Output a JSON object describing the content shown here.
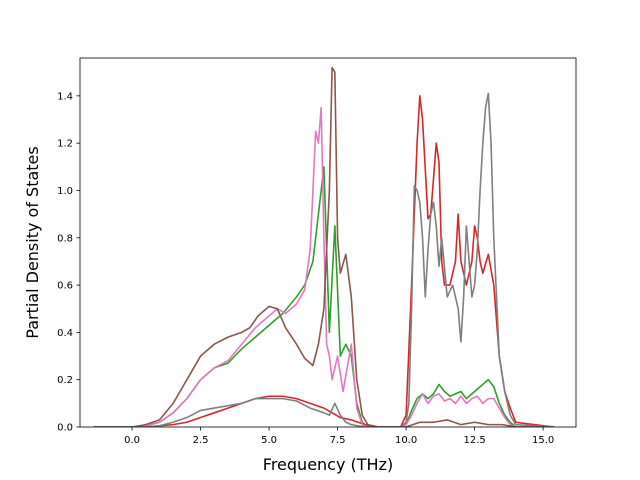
{
  "chart_data": {
    "type": "line",
    "title": "",
    "xlabel": "Frequency (THz)",
    "ylabel": "Partial Density of States",
    "xlim": [
      -1.9,
      16.2
    ],
    "ylim": [
      0.0,
      1.56
    ],
    "xticks": [
      0.0,
      2.5,
      5.0,
      7.5,
      10.0,
      12.5,
      15.0
    ],
    "xtick_labels": [
      "0.0",
      "2.5",
      "5.0",
      "7.5",
      "10.0",
      "12.5",
      "15.0"
    ],
    "yticks": [
      0.0,
      0.2,
      0.4,
      0.6,
      0.8,
      1.0,
      1.2,
      1.4
    ],
    "ytick_labels": [
      "0.0",
      "0.2",
      "0.4",
      "0.6",
      "0.8",
      "1.0",
      "1.2",
      "1.4"
    ],
    "grid": false,
    "legend": false,
    "series": [
      {
        "color": "#2ca02c",
        "x": [
          -1.4,
          0.0,
          0.5,
          1.0,
          1.5,
          2.0,
          2.5,
          3.0,
          3.5,
          4.0,
          4.5,
          5.0,
          5.5,
          6.0,
          6.3,
          6.6,
          6.8,
          7.0,
          7.2,
          7.4,
          7.6,
          7.8,
          8.0,
          8.2,
          8.4,
          8.6,
          9.0,
          9.5,
          9.8,
          10.0,
          10.2,
          10.4,
          10.6,
          10.8,
          11.0,
          11.2,
          11.4,
          11.6,
          11.8,
          12.0,
          12.2,
          12.4,
          12.6,
          12.8,
          13.0,
          13.2,
          13.4,
          13.6,
          13.8,
          14.0,
          15.4
        ],
        "y": [
          0.0,
          0.0,
          0.005,
          0.02,
          0.06,
          0.12,
          0.2,
          0.25,
          0.27,
          0.33,
          0.38,
          0.43,
          0.48,
          0.55,
          0.6,
          0.7,
          0.9,
          1.1,
          0.4,
          0.85,
          0.3,
          0.35,
          0.3,
          0.1,
          0.02,
          0.0,
          0.0,
          0.0,
          0.0,
          0.01,
          0.07,
          0.12,
          0.14,
          0.12,
          0.14,
          0.18,
          0.15,
          0.13,
          0.14,
          0.15,
          0.12,
          0.14,
          0.16,
          0.18,
          0.2,
          0.17,
          0.1,
          0.05,
          0.02,
          0.0,
          0.0
        ]
      },
      {
        "color": "#d62728",
        "x": [
          -1.4,
          0.0,
          0.5,
          1.0,
          1.5,
          2.0,
          2.5,
          3.0,
          3.5,
          4.0,
          4.5,
          5.0,
          5.5,
          6.0,
          6.5,
          7.0,
          7.3,
          7.6,
          8.0,
          8.5,
          9.0,
          9.5,
          9.8,
          10.0,
          10.2,
          10.4,
          10.5,
          10.6,
          10.8,
          10.9,
          11.0,
          11.1,
          11.2,
          11.3,
          11.4,
          11.6,
          11.8,
          11.9,
          12.0,
          12.2,
          12.4,
          12.5,
          12.6,
          12.7,
          12.8,
          13.0,
          13.2,
          13.4,
          13.6,
          13.8,
          14.0,
          15.4
        ],
        "y": [
          0.0,
          0.0,
          0.0,
          0.005,
          0.01,
          0.02,
          0.04,
          0.06,
          0.08,
          0.1,
          0.12,
          0.13,
          0.13,
          0.12,
          0.1,
          0.08,
          0.06,
          0.04,
          0.03,
          0.01,
          0.0,
          0.0,
          0.0,
          0.05,
          0.6,
          1.2,
          1.4,
          1.3,
          0.88,
          0.9,
          1.05,
          1.2,
          1.12,
          0.7,
          0.6,
          0.6,
          0.7,
          0.9,
          0.7,
          0.6,
          0.7,
          0.85,
          0.8,
          0.7,
          0.65,
          0.73,
          0.6,
          0.3,
          0.15,
          0.08,
          0.02,
          0.0
        ]
      },
      {
        "color": "#e377c2",
        "x": [
          -1.4,
          0.0,
          0.5,
          1.0,
          1.5,
          2.0,
          2.5,
          3.0,
          3.5,
          4.0,
          4.5,
          5.0,
          5.3,
          5.6,
          6.0,
          6.3,
          6.5,
          6.7,
          6.8,
          6.9,
          7.0,
          7.1,
          7.2,
          7.3,
          7.5,
          7.7,
          8.0,
          8.2,
          8.4,
          8.6,
          9.0,
          9.5,
          9.8,
          10.0,
          10.2,
          10.4,
          10.6,
          10.8,
          11.0,
          11.2,
          11.4,
          11.6,
          11.8,
          12.0,
          12.2,
          12.4,
          12.6,
          12.8,
          13.0,
          13.2,
          13.4,
          13.6,
          13.8,
          14.0,
          15.4
        ],
        "y": [
          0.0,
          0.0,
          0.005,
          0.02,
          0.06,
          0.12,
          0.2,
          0.25,
          0.28,
          0.35,
          0.42,
          0.47,
          0.5,
          0.48,
          0.52,
          0.58,
          0.75,
          1.25,
          1.2,
          1.35,
          0.8,
          0.35,
          0.3,
          0.2,
          0.3,
          0.15,
          0.35,
          0.08,
          0.01,
          0.0,
          0.0,
          0.0,
          0.0,
          0.01,
          0.05,
          0.1,
          0.14,
          0.1,
          0.13,
          0.14,
          0.11,
          0.12,
          0.1,
          0.13,
          0.1,
          0.12,
          0.13,
          0.1,
          0.12,
          0.12,
          0.08,
          0.04,
          0.01,
          0.0,
          0.0
        ]
      },
      {
        "color": "#8c564b",
        "x": [
          -1.4,
          0.0,
          0.5,
          1.0,
          1.5,
          2.0,
          2.5,
          3.0,
          3.5,
          4.0,
          4.3,
          4.6,
          5.0,
          5.3,
          5.6,
          6.0,
          6.3,
          6.6,
          6.8,
          7.0,
          7.2,
          7.3,
          7.4,
          7.5,
          7.6,
          7.8,
          8.0,
          8.2,
          8.4,
          8.6,
          9.0,
          9.5,
          10.0,
          10.5,
          11.0,
          11.5,
          12.0,
          12.5,
          13.0,
          13.5,
          14.0,
          15.4
        ],
        "y": [
          0.0,
          0.0,
          0.01,
          0.03,
          0.1,
          0.2,
          0.3,
          0.35,
          0.38,
          0.4,
          0.42,
          0.47,
          0.51,
          0.5,
          0.42,
          0.35,
          0.29,
          0.26,
          0.35,
          0.5,
          1.0,
          1.52,
          1.5,
          0.8,
          0.65,
          0.73,
          0.55,
          0.2,
          0.05,
          0.01,
          0.0,
          0.0,
          0.0,
          0.02,
          0.02,
          0.03,
          0.01,
          0.02,
          0.01,
          0.01,
          0.0,
          0.0
        ]
      },
      {
        "color": "#7f7f7f",
        "x": [
          -1.4,
          0.0,
          0.5,
          1.0,
          1.5,
          2.0,
          2.5,
          3.0,
          3.5,
          4.0,
          4.5,
          5.0,
          5.5,
          6.0,
          6.5,
          7.0,
          7.2,
          7.4,
          7.6,
          7.8,
          8.0,
          8.5,
          9.0,
          9.5,
          9.8,
          10.0,
          10.1,
          10.2,
          10.3,
          10.4,
          10.5,
          10.6,
          10.7,
          10.8,
          10.9,
          11.0,
          11.1,
          11.2,
          11.3,
          11.5,
          11.7,
          11.9,
          12.0,
          12.1,
          12.2,
          12.3,
          12.4,
          12.5,
          12.6,
          12.7,
          12.8,
          12.9,
          13.0,
          13.1,
          13.2,
          13.4,
          13.6,
          13.8,
          14.0,
          15.4
        ],
        "y": [
          0.0,
          0.0,
          0.0,
          0.005,
          0.02,
          0.04,
          0.07,
          0.08,
          0.09,
          0.1,
          0.12,
          0.12,
          0.12,
          0.11,
          0.08,
          0.06,
          0.05,
          0.1,
          0.05,
          0.02,
          0.01,
          0.0,
          0.0,
          0.0,
          0.0,
          0.02,
          0.1,
          0.5,
          1.02,
          1.0,
          0.95,
          0.8,
          0.55,
          0.75,
          0.9,
          0.95,
          0.85,
          0.68,
          0.8,
          0.55,
          0.6,
          0.5,
          0.36,
          0.55,
          0.85,
          0.7,
          0.55,
          0.6,
          0.75,
          1.0,
          1.2,
          1.35,
          1.41,
          1.2,
          0.8,
          0.3,
          0.15,
          0.05,
          0.01,
          0.0
        ]
      }
    ]
  }
}
